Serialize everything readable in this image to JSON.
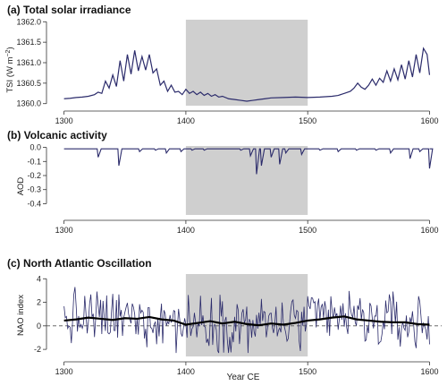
{
  "chart_data": [
    {
      "type": "line",
      "title": "(a) Total solar irradiance",
      "ylabel_main": "TSI (W m",
      "ylabel_sup": "−2",
      "ylabel_close": ")",
      "xlim": [
        1290,
        1607
      ],
      "ylim": [
        1359.95,
        1362.05
      ],
      "xticks": [
        1300,
        1400,
        1500,
        1600
      ],
      "xtick_labels": [
        "1300",
        "1400",
        "1500",
        "1600"
      ],
      "yticks": [
        1360.0,
        1360.5,
        1361.0,
        1361.5,
        1362.0
      ],
      "ytick_labels": [
        "1360.0",
        "1360.5",
        "1361.0",
        "1361.5",
        "1362.0"
      ],
      "shaded_span": [
        1400,
        1500
      ],
      "series_color": "#2b2b6b",
      "x": [
        1300,
        1305,
        1310,
        1315,
        1320,
        1325,
        1328,
        1331,
        1334,
        1337,
        1340,
        1343,
        1346,
        1349,
        1352,
        1355,
        1358,
        1361,
        1364,
        1367,
        1370,
        1373,
        1376,
        1379,
        1382,
        1385,
        1388,
        1391,
        1394,
        1397,
        1400,
        1403,
        1406,
        1409,
        1412,
        1415,
        1418,
        1421,
        1424,
        1427,
        1430,
        1435,
        1440,
        1445,
        1450,
        1455,
        1460,
        1465,
        1470,
        1480,
        1490,
        1500,
        1510,
        1520,
        1525,
        1530,
        1535,
        1538,
        1541,
        1544,
        1547,
        1550,
        1553,
        1556,
        1559,
        1562,
        1565,
        1568,
        1571,
        1574,
        1577,
        1580,
        1583,
        1586,
        1589,
        1592,
        1595,
        1598,
        1600
      ],
      "y": [
        1360.12,
        1360.13,
        1360.15,
        1360.16,
        1360.18,
        1360.22,
        1360.28,
        1360.25,
        1360.55,
        1360.38,
        1360.7,
        1360.42,
        1361.05,
        1360.55,
        1361.2,
        1360.72,
        1361.3,
        1360.8,
        1361.15,
        1360.82,
        1361.2,
        1360.75,
        1360.85,
        1360.45,
        1360.55,
        1360.3,
        1360.45,
        1360.28,
        1360.3,
        1360.22,
        1360.35,
        1360.25,
        1360.3,
        1360.22,
        1360.28,
        1360.2,
        1360.25,
        1360.18,
        1360.22,
        1360.16,
        1360.18,
        1360.12,
        1360.1,
        1360.08,
        1360.06,
        1360.08,
        1360.1,
        1360.12,
        1360.14,
        1360.15,
        1360.16,
        1360.15,
        1360.16,
        1360.18,
        1360.2,
        1360.25,
        1360.3,
        1360.38,
        1360.5,
        1360.4,
        1360.35,
        1360.45,
        1360.6,
        1360.45,
        1360.62,
        1360.52,
        1360.8,
        1360.55,
        1360.85,
        1360.58,
        1360.95,
        1360.6,
        1361.05,
        1360.65,
        1361.2,
        1360.75,
        1361.35,
        1361.2,
        1360.7
      ]
    },
    {
      "type": "line",
      "title": "(b) Volcanic activity",
      "ylabel": "AOD",
      "xlim": [
        1290,
        1607
      ],
      "ylim": [
        -0.48,
        0.01
      ],
      "xticks": [
        1300,
        1400,
        1500,
        1600
      ],
      "xtick_labels": [
        "1300",
        "1400",
        "1500",
        "1600"
      ],
      "yticks": [
        0.0,
        -0.1,
        -0.2,
        -0.3,
        -0.4
      ],
      "ytick_labels": [
        "0.0",
        "-0.1",
        "-0.2",
        "-0.3",
        "-0.4"
      ],
      "shaded_span": [
        1400,
        1500
      ],
      "series_color": "#2b2b6b",
      "baseline": -0.01,
      "events": [
        {
          "x": 1328,
          "depth": -0.07
        },
        {
          "x": 1345,
          "depth": -0.13
        },
        {
          "x": 1362,
          "depth": -0.03
        },
        {
          "x": 1375,
          "depth": -0.02
        },
        {
          "x": 1384,
          "depth": -0.04
        },
        {
          "x": 1396,
          "depth": -0.03
        },
        {
          "x": 1405,
          "depth": -0.02
        },
        {
          "x": 1415,
          "depth": -0.02
        },
        {
          "x": 1430,
          "depth": -0.01
        },
        {
          "x": 1445,
          "depth": -0.02
        },
        {
          "x": 1453,
          "depth": -0.06
        },
        {
          "x": 1458,
          "depth": -0.19
        },
        {
          "x": 1462,
          "depth": -0.13
        },
        {
          "x": 1470,
          "depth": -0.07
        },
        {
          "x": 1477,
          "depth": -0.12
        },
        {
          "x": 1482,
          "depth": -0.04
        },
        {
          "x": 1495,
          "depth": -0.05
        },
        {
          "x": 1510,
          "depth": -0.02
        },
        {
          "x": 1525,
          "depth": -0.03
        },
        {
          "x": 1540,
          "depth": -0.02
        },
        {
          "x": 1556,
          "depth": -0.02
        },
        {
          "x": 1568,
          "depth": -0.04
        },
        {
          "x": 1584,
          "depth": -0.08
        },
        {
          "x": 1592,
          "depth": -0.03
        },
        {
          "x": 1600,
          "depth": -0.15
        }
      ]
    },
    {
      "type": "line",
      "title": "(c) North Atlantic Oscillation",
      "ylabel": "NAO index",
      "xlabel": "Year CE",
      "xlim": [
        1290,
        1607
      ],
      "ylim": [
        -2.6,
        4.4
      ],
      "xticks": [
        1300,
        1400,
        1500,
        1600
      ],
      "xtick_labels": [
        "1300",
        "1400",
        "1500",
        "1600"
      ],
      "yticks": [
        -2,
        0,
        2,
        4
      ],
      "ytick_labels": [
        "-2",
        "0",
        "2",
        "4"
      ],
      "shaded_span": [
        1400,
        1500
      ],
      "dashed_zero": true,
      "series_color": "#2b2b6b",
      "smooth_color": "#000000",
      "smooth_x": [
        1300,
        1310,
        1320,
        1330,
        1340,
        1350,
        1360,
        1370,
        1380,
        1390,
        1400,
        1410,
        1420,
        1430,
        1440,
        1450,
        1460,
        1470,
        1480,
        1490,
        1500,
        1510,
        1520,
        1530,
        1540,
        1550,
        1560,
        1570,
        1580,
        1590,
        1600
      ],
      "smooth_y": [
        0.45,
        0.55,
        0.7,
        0.6,
        0.5,
        0.65,
        0.6,
        0.75,
        0.55,
        0.45,
        0.1,
        0.25,
        0.4,
        0.2,
        0.35,
        0.15,
        0.05,
        0.2,
        0.1,
        0.25,
        0.45,
        0.55,
        0.7,
        0.8,
        0.55,
        0.45,
        0.35,
        0.3,
        0.3,
        0.15,
        0.1
      ]
    }
  ]
}
